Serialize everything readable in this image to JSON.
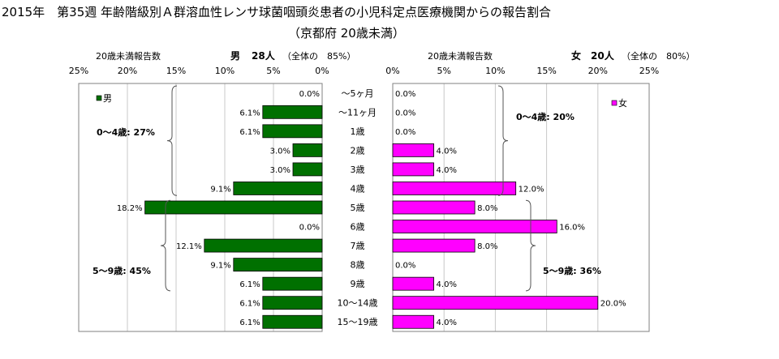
{
  "title": {
    "line1": "2015年　第35週 年齢階級別Ａ群溶血性レンサ球菌咽頭炎患者の小児科定点医療機関からの報告割合",
    "line2": "（京都府 20歳未満）"
  },
  "male_panel": {
    "header_label": "20歳未満報告数",
    "header_sex": "男",
    "header_count": "28人",
    "header_share": "（全体の　85%）",
    "legend": "男",
    "bracket_labels": [
      "0～4歳: 27%",
      "5～9歳: 45%"
    ]
  },
  "female_panel": {
    "header_label": "20歳未満報告数",
    "header_sex": "女",
    "header_count": "20人",
    "header_share": "（全体の　80%）",
    "legend": "女",
    "bracket_labels": [
      "0～4歳: 20%",
      "5～9歳: 36%"
    ]
  },
  "colors": {
    "male": "#007000",
    "female": "#ff00ff",
    "grid": "#c8c8c8"
  },
  "chart_data": {
    "type": "bar",
    "orientation": "horizontal",
    "categories": [
      "～5ヶ月",
      "～11ヶ月",
      "1歳",
      "2歳",
      "3歳",
      "4歳",
      "5歳",
      "6歳",
      "7歳",
      "8歳",
      "9歳",
      "10～14歳",
      "15～19歳"
    ],
    "x_ticks": [
      "25%",
      "20%",
      "15%",
      "10%",
      "5%",
      "0%",
      "0%",
      "5%",
      "10%",
      "15%",
      "20%",
      "25%"
    ],
    "xlim": [
      0,
      25
    ],
    "series": [
      {
        "name": "男",
        "values": [
          0.0,
          6.1,
          6.1,
          3.0,
          3.0,
          9.1,
          18.2,
          0.0,
          12.1,
          9.1,
          6.1,
          6.1,
          6.1
        ],
        "labels": [
          "0.0%",
          "6.1%",
          "6.1%",
          "3.0%",
          "3.0%",
          "9.1%",
          "18.2%",
          "0.0%",
          "12.1%",
          "9.1%",
          "6.1%",
          "6.1%",
          "6.1%"
        ]
      },
      {
        "name": "女",
        "values": [
          0.0,
          0.0,
          0.0,
          4.0,
          4.0,
          12.0,
          8.0,
          16.0,
          8.0,
          0.0,
          4.0,
          20.0,
          4.0
        ],
        "labels": [
          "0.0%",
          "0.0%",
          "0.0%",
          "4.0%",
          "4.0%",
          "12.0%",
          "8.0%",
          "16.0%",
          "8.0%",
          "0.0%",
          "4.0%",
          "20.0%",
          "4.0%"
        ]
      }
    ]
  }
}
